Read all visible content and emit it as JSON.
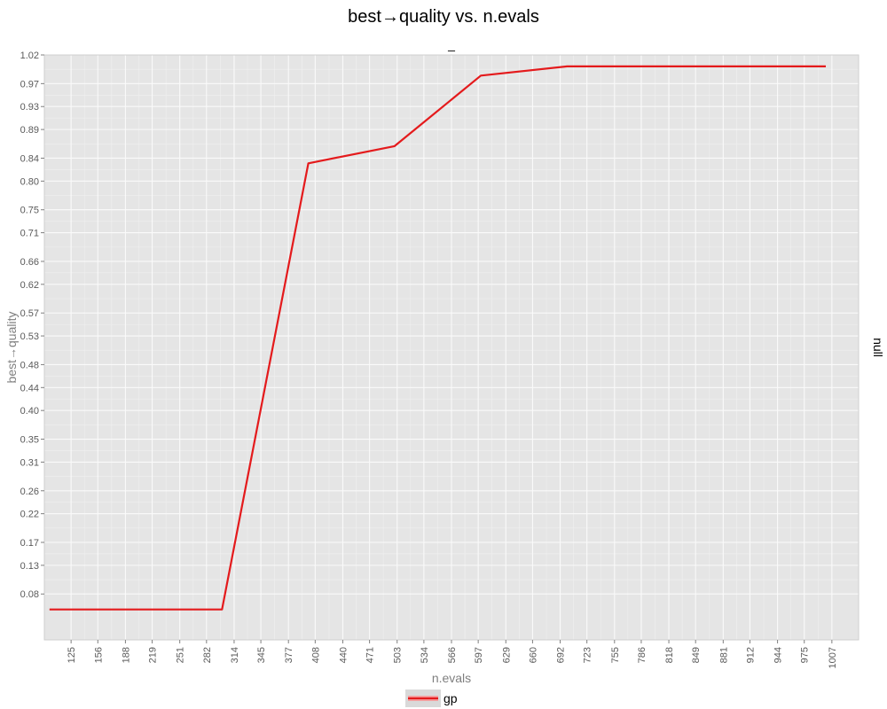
{
  "chart_data": {
    "type": "line",
    "title": "best→quality vs. n.evals",
    "subtitle": "_",
    "xlabel": "n.evals",
    "ylabel": "best→quality",
    "facet_label": "null",
    "xlim": [
      94,
      1038
    ],
    "ylim": [
      0,
      1.02
    ],
    "x_ticks": [
      "125",
      "156",
      "188",
      "219",
      "251",
      "282",
      "314",
      "345",
      "377",
      "408",
      "440",
      "471",
      "503",
      "534",
      "566",
      "597",
      "629",
      "660",
      "692",
      "723",
      "755",
      "786",
      "818",
      "849",
      "881",
      "912",
      "944",
      "975",
      "1007"
    ],
    "y_ticks": [
      "0.08",
      "0.13",
      "0.17",
      "0.22",
      "0.26",
      "0.31",
      "0.35",
      "0.40",
      "0.44",
      "0.48",
      "0.53",
      "0.57",
      "0.62",
      "0.66",
      "0.71",
      "0.75",
      "0.80",
      "0.84",
      "0.89",
      "0.93",
      "0.97",
      "1.02"
    ],
    "grid": true,
    "legend_position": "bottom",
    "series": [
      {
        "name": "gp",
        "color": "#e41a1c",
        "x": [
          100,
          300,
          400,
          500,
          600,
          700,
          1000
        ],
        "y": [
          0.053,
          0.053,
          0.831,
          0.861,
          0.984,
          1.0,
          1.0
        ]
      }
    ]
  }
}
